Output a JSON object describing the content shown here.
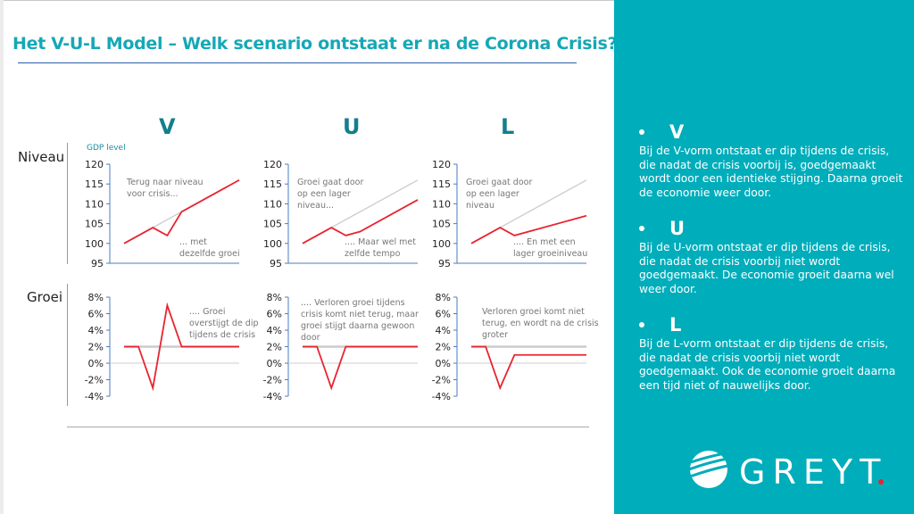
{
  "title": "Het V-U-L Model – Welk scenario ontstaat er na de Corona Crisis?",
  "row_labels": {
    "level": "Niveau",
    "growth": "Groei"
  },
  "columns": [
    "V",
    "U",
    "L"
  ],
  "colors": {
    "accent": "#00adbb",
    "title": "#14a8b6",
    "series": "#e8242f",
    "baseline": "#cccccc",
    "axis": "#4a7cc0"
  },
  "bullets": [
    {
      "head": "V",
      "text": "Bij de V-vorm ontstaat er dip tijdens de crisis, die nadat de crisis voorbij is, goedgemaakt wordt door een identieke stijging.  Daarna groeit de economie weer door."
    },
    {
      "head": "U",
      "text": "Bij de U-vorm ontstaat er dip tijdens de crisis, die nadat de crisis voorbij niet wordt goedgemaakt. De economie groeit daarna wel weer door."
    },
    {
      "head": "L",
      "text": "Bij de L-vorm ontstaat er dip tijdens de crisis, die nadat de crisis voorbij niet wordt goedgemaakt.  Ook de economie groeit daarna een tijd niet of nauwelijks door."
    }
  ],
  "logo": {
    "text": "GREYT",
    "dot_color": "#e8242f"
  },
  "chart_data": [
    {
      "type": "line",
      "scenario": "V",
      "row": "level",
      "ylabel": "GDP level",
      "ylim": [
        95,
        120
      ],
      "yticks": [
        "120",
        "115",
        "110",
        "105",
        "100",
        "95"
      ],
      "x": [
        0,
        2,
        3,
        4,
        8
      ],
      "series": [
        {
          "values": [
            100,
            104,
            102,
            108,
            116
          ]
        }
      ],
      "baseline": {
        "x": [
          0,
          8
        ],
        "values": [
          100,
          116
        ]
      },
      "annotations": [
        "Terug naar niveau\nvoor crisis...",
        "... met\ndezelfde groei"
      ]
    },
    {
      "type": "line",
      "scenario": "U",
      "row": "level",
      "ylim": [
        95,
        120
      ],
      "yticks": [
        "120",
        "115",
        "110",
        "105",
        "100",
        "95"
      ],
      "x": [
        0,
        2,
        3,
        4,
        8
      ],
      "series": [
        {
          "values": [
            100,
            104,
            102,
            103,
            111
          ]
        }
      ],
      "baseline": {
        "x": [
          0,
          8
        ],
        "values": [
          100,
          116
        ]
      },
      "annotations": [
        "Groei gaat door\nop een lager\nniveau...",
        ".... Maar wel met\nzelfde tempo"
      ]
    },
    {
      "type": "line",
      "scenario": "L",
      "row": "level",
      "ylim": [
        95,
        120
      ],
      "yticks": [
        "120",
        "115",
        "110",
        "105",
        "100",
        "95"
      ],
      "x": [
        0,
        2,
        3,
        8
      ],
      "series": [
        {
          "values": [
            100,
            104,
            102,
            107
          ]
        }
      ],
      "baseline": {
        "x": [
          0,
          8
        ],
        "values": [
          100,
          116
        ]
      },
      "annotations": [
        "Groei gaat door\nop een lager\nniveau",
        ".... En met een\nlager groeiniveau"
      ]
    },
    {
      "type": "line",
      "scenario": "V",
      "row": "growth",
      "ylim": [
        -4,
        8
      ],
      "yticks": [
        "8%",
        "6%",
        "4%",
        "2%",
        "0%",
        "-2%",
        "-4%"
      ],
      "x": [
        0,
        1,
        2,
        3,
        4,
        8
      ],
      "series": [
        {
          "values": [
            2,
            2,
            -3,
            7,
            2,
            2
          ]
        }
      ],
      "baseline": {
        "x": [
          0,
          8
        ],
        "values": [
          2,
          2
        ]
      },
      "annotations": [
        ".... Groei\noverstijgt de dip\ntijdens de crisis"
      ]
    },
    {
      "type": "line",
      "scenario": "U",
      "row": "growth",
      "ylim": [
        -4,
        8
      ],
      "yticks": [
        "8%",
        "6%",
        "4%",
        "2%",
        "0%",
        "-2%",
        "-4%"
      ],
      "x": [
        0,
        1,
        2,
        3,
        8
      ],
      "series": [
        {
          "values": [
            2,
            2,
            -3,
            2,
            2
          ]
        }
      ],
      "baseline": {
        "x": [
          0,
          8
        ],
        "values": [
          2,
          2
        ]
      },
      "annotations": [
        ".... Verloren groei tijdens\ncrisis komt niet terug, maar\ngroei stijgt daarna gewoon\ndoor"
      ]
    },
    {
      "type": "line",
      "scenario": "L",
      "row": "growth",
      "ylim": [
        -4,
        8
      ],
      "yticks": [
        "8%",
        "6%",
        "4%",
        "2%",
        "0%",
        "-2%",
        "-4%"
      ],
      "x": [
        0,
        1,
        2,
        3,
        8
      ],
      "series": [
        {
          "values": [
            2,
            2,
            -3,
            1,
            1
          ]
        }
      ],
      "baseline": {
        "x": [
          0,
          8
        ],
        "values": [
          2,
          2
        ]
      },
      "annotations": [
        "Verloren groei komt niet\nterug, en wordt na de crisis\ngroter"
      ]
    }
  ]
}
